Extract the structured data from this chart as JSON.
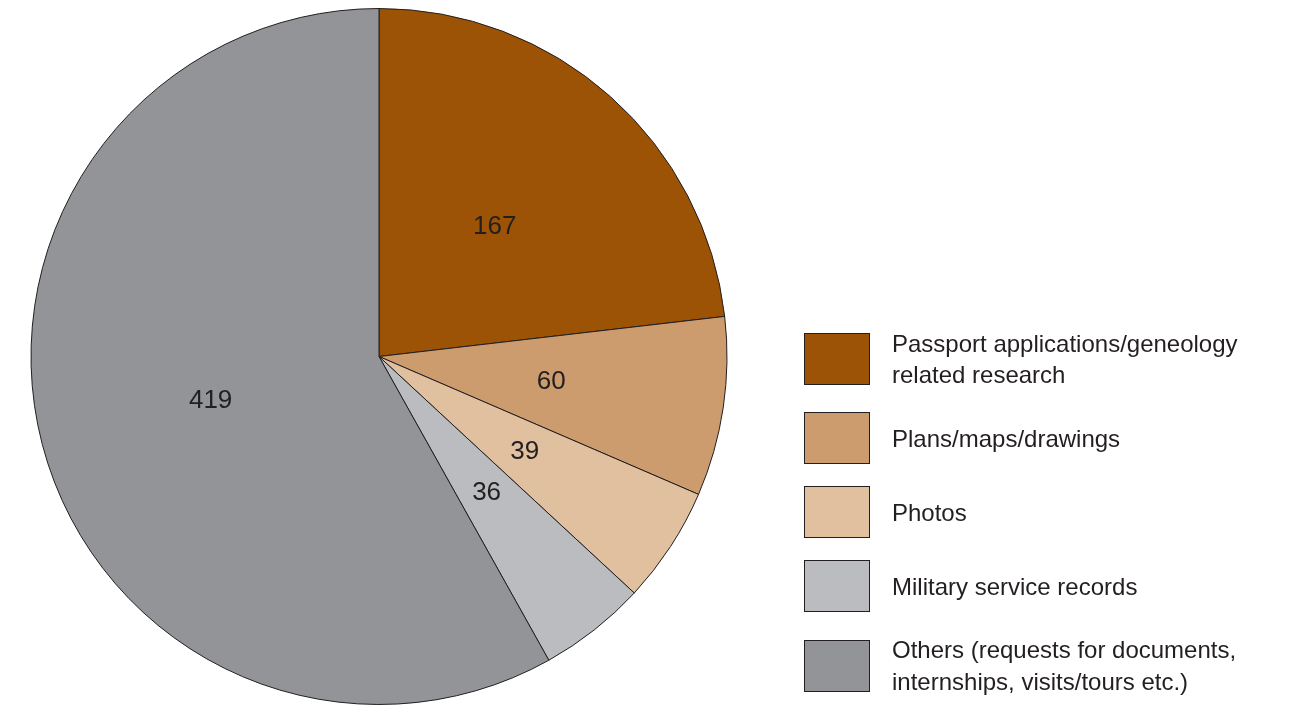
{
  "chart_data": {
    "type": "pie",
    "categories": [
      "Passport applications/geneology related research",
      "Plans/maps/drawings",
      "Photos",
      "Military service records",
      "Others (requests for documents, internships, visits/tours etc.)"
    ],
    "values": [
      167,
      60,
      39,
      36,
      419
    ],
    "colors": [
      "#9c5306",
      "#cc9c6e",
      "#e0c09e",
      "#bbbcc0",
      "#929497"
    ],
    "data_labels": true,
    "legend": "right"
  }
}
